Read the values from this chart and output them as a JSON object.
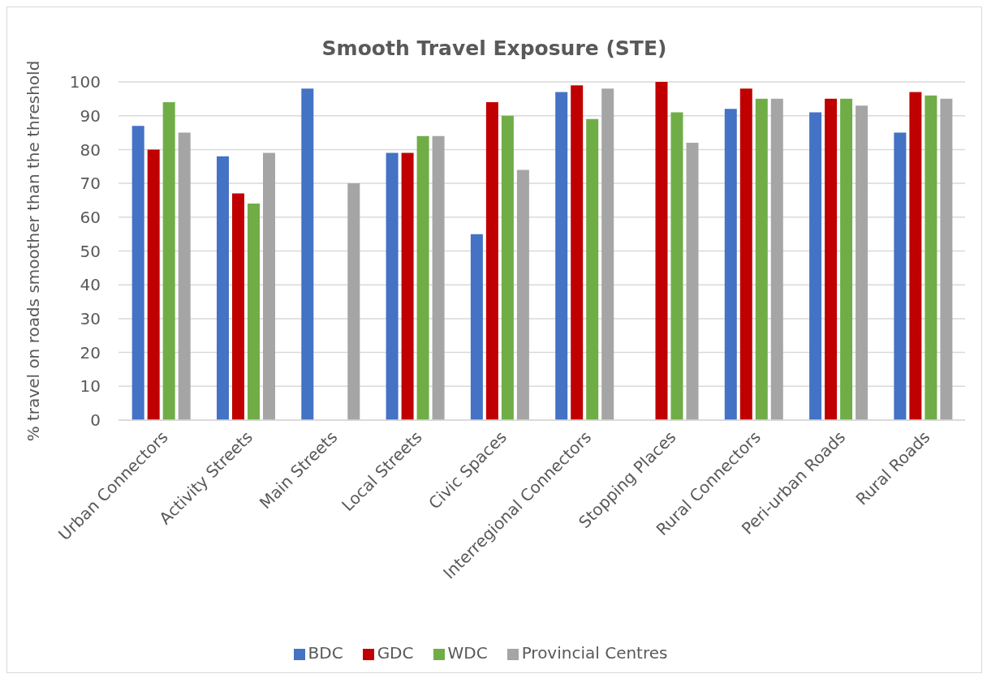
{
  "chart_data": {
    "type": "bar",
    "title": "Smooth Travel Exposure (STE)",
    "ylabel": "% travel on roads smoother than the threshold",
    "categories": [
      "Urban Connectors",
      "Activity Streets",
      "Main Streets",
      "Local Streets",
      "Civic Spaces",
      "Interregional Connectors",
      "Stopping Places",
      "Rural Connectors",
      "Peri-urban Roads",
      "Rural Roads"
    ],
    "series": [
      {
        "name": "BDC",
        "color": "#4472c4",
        "values": [
          87,
          78,
          98,
          79,
          55,
          97,
          null,
          92,
          91,
          85
        ]
      },
      {
        "name": "GDC",
        "color": "#c00000",
        "values": [
          80,
          67,
          null,
          79,
          94,
          99,
          100,
          98,
          95,
          97
        ]
      },
      {
        "name": "WDC",
        "color": "#70ad47",
        "values": [
          94,
          64,
          null,
          84,
          90,
          89,
          91,
          95,
          95,
          96
        ]
      },
      {
        "name": "Provincial Centres",
        "color": "#a5a5a5",
        "values": [
          85,
          79,
          70,
          84,
          74,
          98,
          82,
          95,
          93,
          95
        ]
      }
    ],
    "ylim": [
      0,
      100
    ],
    "yticks": [
      0,
      10,
      20,
      30,
      40,
      50,
      60,
      70,
      80,
      90,
      100
    ],
    "grid": "y",
    "legend": "bottom"
  }
}
